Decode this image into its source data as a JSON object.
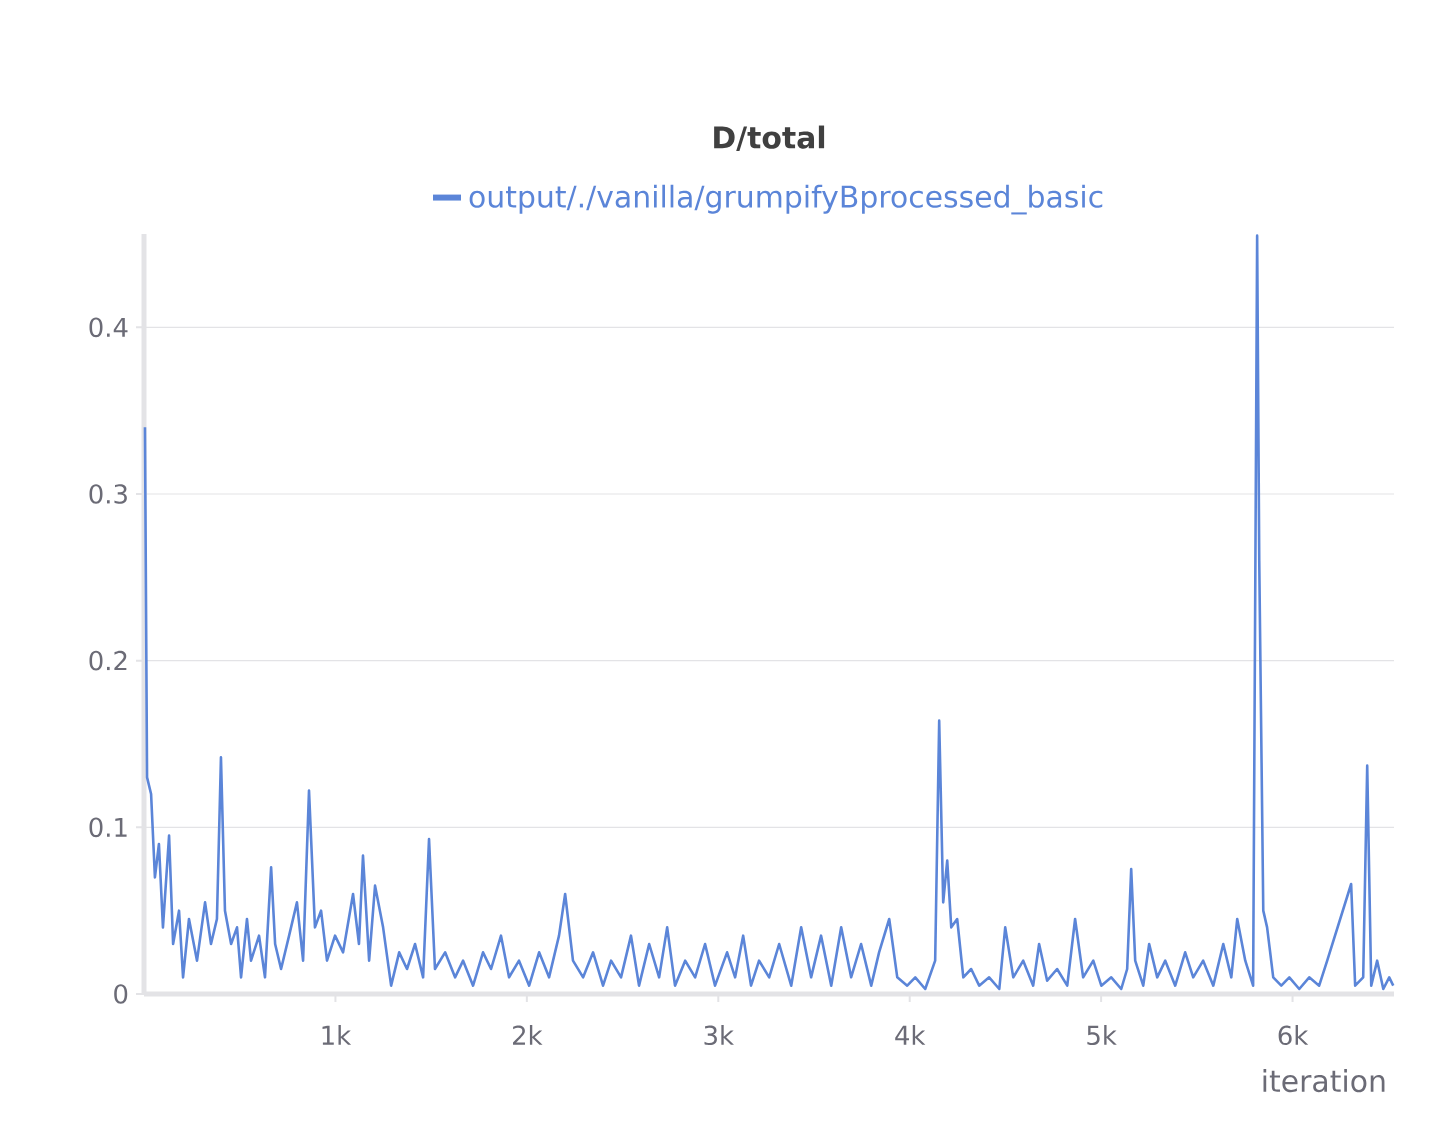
{
  "chart_data": {
    "type": "line",
    "title": "D/total",
    "xlabel": "iteration",
    "xlim": [
      0,
      6530
    ],
    "ylim": [
      0,
      0.456
    ],
    "xticks": [
      {
        "value": 1000,
        "label": "1k"
      },
      {
        "value": 2000,
        "label": "2k"
      },
      {
        "value": 3000,
        "label": "3k"
      },
      {
        "value": 4000,
        "label": "4k"
      },
      {
        "value": 5000,
        "label": "5k"
      },
      {
        "value": 6000,
        "label": "6k"
      }
    ],
    "yticks": [
      0,
      0.1,
      0.2,
      0.3,
      0.4
    ],
    "grid": "y",
    "legend": "top",
    "marker": "none",
    "line_style": "solid",
    "series": [
      {
        "name": "output/./vanilla/grumpifyBprocessed_basic",
        "color": "#5b85d8",
        "x": [
          5,
          16,
          37,
          57,
          78,
          99,
          131,
          152,
          183,
          204,
          235,
          277,
          319,
          350,
          381,
          402,
          423,
          455,
          486,
          507,
          538,
          559,
          601,
          632,
          664,
          685,
          716,
          758,
          799,
          831,
          862,
          893,
          925,
          956,
          998,
          1040,
          1092,
          1123,
          1144,
          1176,
          1207,
          1249,
          1291,
          1333,
          1374,
          1416,
          1458,
          1489,
          1520,
          1573,
          1625,
          1667,
          1719,
          1771,
          1813,
          1865,
          1907,
          1959,
          2012,
          2064,
          2116,
          2168,
          2200,
          2241,
          2294,
          2346,
          2398,
          2440,
          2492,
          2544,
          2586,
          2639,
          2691,
          2733,
          2774,
          2827,
          2879,
          2931,
          2983,
          3046,
          3088,
          3130,
          3171,
          3213,
          3266,
          3318,
          3381,
          3433,
          3485,
          3537,
          3590,
          3642,
          3694,
          3746,
          3799,
          3840,
          3893,
          3935,
          3987,
          4029,
          4081,
          4133,
          4154,
          4175,
          4196,
          4217,
          4248,
          4280,
          4321,
          4363,
          4415,
          4468,
          4499,
          4541,
          4593,
          4645,
          4676,
          4718,
          4770,
          4823,
          4864,
          4906,
          4959,
          5001,
          5053,
          5105,
          5136,
          5157,
          5178,
          5220,
          5251,
          5293,
          5335,
          5387,
          5439,
          5481,
          5533,
          5586,
          5638,
          5680,
          5711,
          5753,
          5794,
          5815,
          5826,
          5847,
          5867,
          5899,
          5941,
          5983,
          6035,
          6087,
          6139,
          6181,
          6306,
          6327,
          6369,
          6390,
          6411,
          6442,
          6474,
          6505,
          6526
        ],
        "values": [
          0.34,
          0.13,
          0.12,
          0.07,
          0.09,
          0.04,
          0.095,
          0.03,
          0.05,
          0.01,
          0.045,
          0.02,
          0.055,
          0.03,
          0.045,
          0.142,
          0.05,
          0.03,
          0.04,
          0.01,
          0.045,
          0.02,
          0.035,
          0.01,
          0.076,
          0.03,
          0.015,
          0.035,
          0.055,
          0.02,
          0.122,
          0.04,
          0.05,
          0.02,
          0.035,
          0.025,
          0.06,
          0.03,
          0.083,
          0.02,
          0.065,
          0.04,
          0.005,
          0.025,
          0.015,
          0.03,
          0.01,
          0.093,
          0.015,
          0.025,
          0.01,
          0.02,
          0.005,
          0.025,
          0.015,
          0.035,
          0.01,
          0.02,
          0.005,
          0.025,
          0.01,
          0.035,
          0.06,
          0.02,
          0.01,
          0.025,
          0.005,
          0.02,
          0.01,
          0.035,
          0.005,
          0.03,
          0.01,
          0.04,
          0.005,
          0.02,
          0.01,
          0.03,
          0.005,
          0.025,
          0.01,
          0.035,
          0.005,
          0.02,
          0.01,
          0.03,
          0.005,
          0.04,
          0.01,
          0.035,
          0.005,
          0.04,
          0.01,
          0.03,
          0.005,
          0.025,
          0.045,
          0.01,
          0.005,
          0.01,
          0.003,
          0.02,
          0.164,
          0.055,
          0.08,
          0.04,
          0.045,
          0.01,
          0.015,
          0.005,
          0.01,
          0.003,
          0.04,
          0.01,
          0.02,
          0.005,
          0.03,
          0.008,
          0.015,
          0.005,
          0.045,
          0.01,
          0.02,
          0.005,
          0.01,
          0.003,
          0.015,
          0.075,
          0.02,
          0.005,
          0.03,
          0.01,
          0.02,
          0.005,
          0.025,
          0.01,
          0.02,
          0.005,
          0.03,
          0.01,
          0.045,
          0.02,
          0.005,
          0.455,
          0.26,
          0.05,
          0.04,
          0.01,
          0.005,
          0.01,
          0.003,
          0.01,
          0.005,
          0.02,
          0.066,
          0.005,
          0.01,
          0.137,
          0.005,
          0.02,
          0.003,
          0.01,
          0.005
        ]
      }
    ]
  }
}
